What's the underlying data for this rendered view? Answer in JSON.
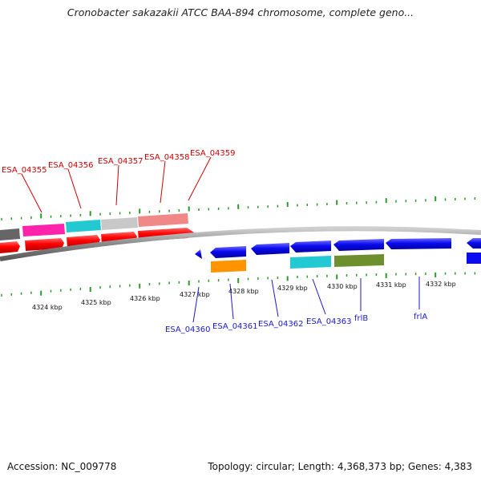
{
  "title": "Cronobacter sakazakii ATCC BAA-894 chromosome, complete geno...",
  "footer": {
    "accession": "Accession: NC_009778",
    "topology": "Topology: circular; Length: 4,368,373 bp; Genes: 4,383"
  },
  "scale_labels": [
    "4324 kbp",
    "4325 kbp",
    "4326 kbp",
    "4327 kbp",
    "4328 kbp",
    "4329 kbp",
    "4330 kbp",
    "4331 kbp",
    "4332 kbp"
  ],
  "genes_top": [
    {
      "label": "ESA_04355",
      "color": "#cc0000"
    },
    {
      "label": "ESA_04356",
      "color": "#cc0000"
    },
    {
      "label": "ESA_04357",
      "color": "#cc0000"
    },
    {
      "label": "ESA_04358",
      "color": "#cc0000"
    },
    {
      "label": "ESA_04359",
      "color": "#cc0000"
    }
  ],
  "genes_bottom": [
    {
      "label": "ESA_04360",
      "color": "#1a1acc"
    },
    {
      "label": "ESA_04361",
      "color": "#1a1acc"
    },
    {
      "label": "ESA_04362",
      "color": "#1a1acc"
    },
    {
      "label": "ESA_04363",
      "color": "#1a1acc"
    },
    {
      "label": "frlB",
      "color": "#1a1acc"
    },
    {
      "label": "frlA",
      "color": "#1a1acc"
    }
  ],
  "colors": {
    "forward_cds": "#ff0000",
    "reverse_cds": "#0b0bef",
    "backbone": "#8a8a8a",
    "gc_ticks": "#2b9a2b",
    "cog_magenta": "#ff22aa",
    "cog_cyan": "#22c8d2",
    "cog_grey": "#c8c8c8",
    "cog_pink": "#f08888",
    "cog_orange": "#ff9400",
    "cog_olive": "#6e8f2e"
  }
}
